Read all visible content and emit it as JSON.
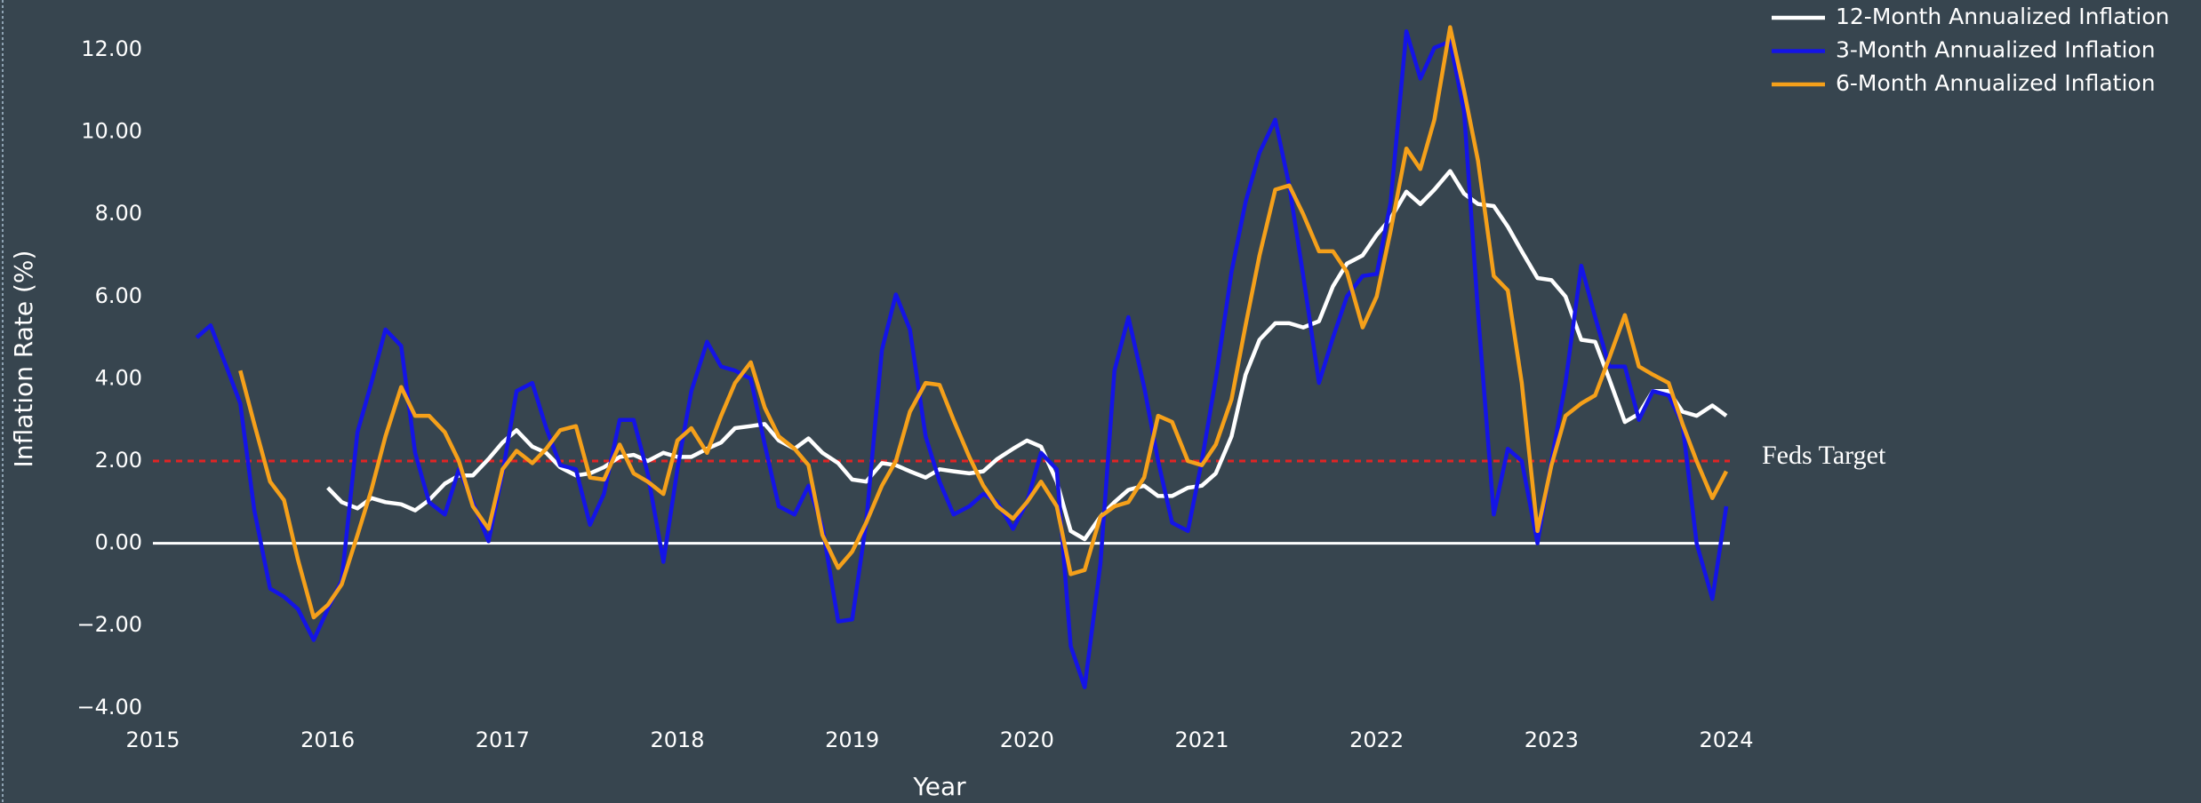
{
  "chart_data": {
    "type": "line",
    "x_label": "Year",
    "y_label": "Inflation Rate (%)",
    "xlim": [
      2015,
      2024
    ],
    "ylim": [
      -4.5,
      12.8
    ],
    "xticks": [
      2015,
      2016,
      2017,
      2018,
      2019,
      2020,
      2021,
      2022,
      2023,
      2024
    ],
    "yticks": [
      {
        "value": -4,
        "label": "−4.00"
      },
      {
        "value": -2,
        "label": "−2.00"
      },
      {
        "value": 0,
        "label": "0.00"
      },
      {
        "value": 2,
        "label": "2.00"
      },
      {
        "value": 4,
        "label": "4.00"
      },
      {
        "value": 6,
        "label": "6.00"
      },
      {
        "value": 8,
        "label": "8.00"
      },
      {
        "value": 10,
        "label": "10.00"
      },
      {
        "value": 12,
        "label": "12.00"
      }
    ],
    "grid": false,
    "zero_line": true,
    "legend": "upper right",
    "reference_line": {
      "value": 2,
      "label": "Feds Target",
      "color": "#e02424"
    },
    "x": [
      2015.25,
      2015.33,
      2015.42,
      2015.5,
      2015.58,
      2015.67,
      2015.75,
      2015.83,
      2015.92,
      2016.0,
      2016.08,
      2016.17,
      2016.25,
      2016.33,
      2016.42,
      2016.5,
      2016.58,
      2016.67,
      2016.75,
      2016.83,
      2016.92,
      2017.0,
      2017.08,
      2017.17,
      2017.25,
      2017.33,
      2017.42,
      2017.5,
      2017.58,
      2017.67,
      2017.75,
      2017.83,
      2017.92,
      2018.0,
      2018.08,
      2018.17,
      2018.25,
      2018.33,
      2018.42,
      2018.5,
      2018.58,
      2018.67,
      2018.75,
      2018.83,
      2018.92,
      2019.0,
      2019.08,
      2019.17,
      2019.25,
      2019.33,
      2019.42,
      2019.5,
      2019.58,
      2019.67,
      2019.75,
      2019.83,
      2019.92,
      2020.0,
      2020.08,
      2020.17,
      2020.25,
      2020.33,
      2020.42,
      2020.5,
      2020.58,
      2020.67,
      2020.75,
      2020.83,
      2020.92,
      2021.0,
      2021.08,
      2021.17,
      2021.25,
      2021.33,
      2021.42,
      2021.5,
      2021.58,
      2021.67,
      2021.75,
      2021.83,
      2021.92,
      2022.0,
      2022.08,
      2022.17,
      2022.25,
      2022.33,
      2022.42,
      2022.5,
      2022.58,
      2022.67,
      2022.75,
      2022.83,
      2022.92,
      2023.0,
      2023.08,
      2023.17,
      2023.25,
      2023.33,
      2023.42,
      2023.5,
      2023.58,
      2023.67,
      2023.75,
      2023.83,
      2023.92,
      2024.0
    ],
    "series": [
      {
        "name": "12-Month Annualized Inflation",
        "color": "#ffffff",
        "values": [
          null,
          null,
          null,
          null,
          null,
          null,
          null,
          null,
          null,
          1.35,
          1.0,
          0.85,
          1.1,
          1.0,
          0.95,
          0.8,
          1.05,
          1.45,
          1.65,
          1.65,
          2.05,
          2.45,
          2.75,
          2.35,
          2.2,
          1.85,
          1.65,
          1.7,
          1.85,
          2.1,
          2.15,
          2.0,
          2.2,
          2.1,
          2.1,
          2.3,
          2.45,
          2.8,
          2.85,
          2.9,
          2.5,
          2.3,
          2.55,
          2.2,
          1.95,
          1.55,
          1.5,
          1.95,
          1.9,
          1.75,
          1.6,
          1.8,
          1.75,
          1.7,
          1.75,
          2.05,
          2.3,
          2.5,
          2.35,
          1.5,
          0.3,
          0.1,
          0.65,
          1.0,
          1.3,
          1.4,
          1.15,
          1.15,
          1.35,
          1.4,
          1.7,
          2.6,
          4.1,
          4.95,
          5.35,
          5.35,
          5.25,
          5.4,
          6.25,
          6.8,
          7.0,
          7.5,
          7.9,
          8.55,
          8.25,
          8.6,
          9.05,
          8.5,
          8.25,
          8.2,
          7.7,
          7.1,
          6.45,
          6.4,
          6.0,
          4.95,
          4.9,
          4.0,
          2.95,
          3.15,
          3.7,
          3.7,
          3.2,
          3.1,
          3.35,
          3.1
        ]
      },
      {
        "name": "3-Month Annualized Inflation",
        "color": "#1414e6",
        "values": [
          5.0,
          5.3,
          4.3,
          3.4,
          0.8,
          -1.1,
          -1.3,
          -1.6,
          -2.35,
          -1.6,
          -0.9,
          2.7,
          3.9,
          5.2,
          4.8,
          2.2,
          1.0,
          0.7,
          1.8,
          1.0,
          0.05,
          1.7,
          3.7,
          3.9,
          2.8,
          1.9,
          1.8,
          0.45,
          1.2,
          3.0,
          3.0,
          1.7,
          -0.45,
          1.8,
          3.7,
          4.9,
          4.3,
          4.2,
          4.0,
          2.4,
          0.9,
          0.7,
          1.4,
          0.4,
          -1.9,
          -1.85,
          0.5,
          4.7,
          6.05,
          5.2,
          2.6,
          1.5,
          0.7,
          0.9,
          1.2,
          1.0,
          0.35,
          1.0,
          2.2,
          1.8,
          -2.5,
          -3.5,
          -0.5,
          4.2,
          5.5,
          3.8,
          2.0,
          0.5,
          0.3,
          2.0,
          4.0,
          6.6,
          8.3,
          9.5,
          10.3,
          8.7,
          6.5,
          3.9,
          5.0,
          6.0,
          6.5,
          6.55,
          8.3,
          12.45,
          11.3,
          12.05,
          12.2,
          10.5,
          5.6,
          0.7,
          2.3,
          2.0,
          0.0,
          2.0,
          3.9,
          6.75,
          5.5,
          4.3,
          4.3,
          3.0,
          3.7,
          3.6,
          2.9,
          0.0,
          -1.35,
          0.9
        ]
      },
      {
        "name": "6-Month Annualized Inflation",
        "color": "#f5a01a",
        "values": [
          null,
          null,
          null,
          4.2,
          2.9,
          1.5,
          1.05,
          -0.4,
          -1.8,
          -1.5,
          -1.0,
          0.2,
          1.3,
          2.6,
          3.8,
          3.1,
          3.1,
          2.7,
          2.0,
          0.9,
          0.35,
          1.8,
          2.25,
          1.95,
          2.3,
          2.75,
          2.85,
          1.6,
          1.55,
          2.4,
          1.7,
          1.5,
          1.2,
          2.5,
          2.8,
          2.2,
          3.1,
          3.9,
          4.4,
          3.3,
          2.6,
          2.3,
          1.9,
          0.2,
          -0.6,
          -0.2,
          0.5,
          1.4,
          2.0,
          3.2,
          3.9,
          3.85,
          3.0,
          2.1,
          1.4,
          0.9,
          0.6,
          1.0,
          1.5,
          0.9,
          -0.75,
          -0.65,
          0.65,
          0.9,
          1.0,
          1.6,
          3.1,
          2.95,
          2.0,
          1.9,
          2.4,
          3.5,
          5.3,
          7.0,
          8.6,
          8.7,
          8.0,
          7.1,
          7.1,
          6.6,
          5.25,
          6.0,
          7.6,
          9.6,
          9.1,
          10.3,
          12.55,
          11.0,
          9.3,
          6.5,
          6.15,
          3.9,
          0.3,
          1.9,
          3.1,
          3.4,
          3.6,
          4.5,
          5.55,
          4.3,
          4.1,
          3.9,
          2.9,
          2.0,
          1.1,
          1.75
        ]
      }
    ]
  }
}
